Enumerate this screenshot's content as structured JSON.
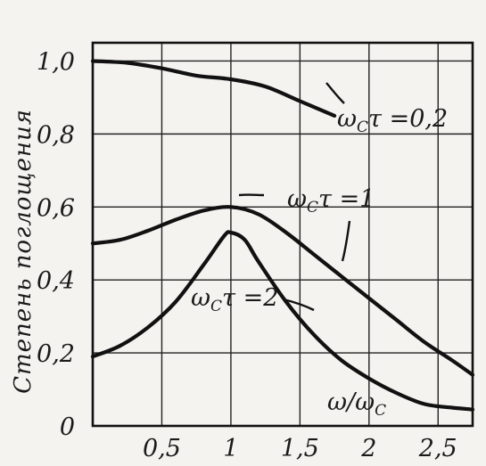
{
  "chart_data": {
    "type": "line",
    "ylabel": "Степень поглощения",
    "xlabel": "ω/ω_C",
    "xlim": [
      0,
      2.75
    ],
    "ylim": [
      0,
      1.05
    ],
    "x_ticks": [
      {
        "value": 0.5,
        "label": "0,5"
      },
      {
        "value": 1,
        "label": "1"
      },
      {
        "value": 1.5,
        "label": "1,5"
      },
      {
        "value": 2,
        "label": "2"
      },
      {
        "value": 2.5,
        "label": "2,5"
      }
    ],
    "y_ticks": [
      {
        "value": 0,
        "label": "0"
      },
      {
        "value": 0.2,
        "label": "0,2"
      },
      {
        "value": 0.4,
        "label": "0,4"
      },
      {
        "value": 0.6,
        "label": "0,6"
      },
      {
        "value": 0.8,
        "label": "0,8"
      },
      {
        "value": 1.0,
        "label": "1,0"
      }
    ],
    "grid": true,
    "series": [
      {
        "name": "ω_C τ = 0,2",
        "x": [
          0,
          0.25,
          0.5,
          0.75,
          1.0,
          1.25,
          1.5,
          1.75
        ],
        "y": [
          1.0,
          0.995,
          0.98,
          0.96,
          0.95,
          0.93,
          0.89,
          0.85
        ]
      },
      {
        "name": "ω_C τ = 1",
        "x": [
          0,
          0.2,
          0.4,
          0.6,
          0.8,
          1.0,
          1.2,
          1.4,
          1.6,
          1.8,
          2.0,
          2.2,
          2.4,
          2.6,
          2.75
        ],
        "y": [
          0.5,
          0.51,
          0.535,
          0.565,
          0.59,
          0.6,
          0.58,
          0.53,
          0.47,
          0.41,
          0.35,
          0.29,
          0.23,
          0.18,
          0.14
        ]
      },
      {
        "name": "ω_C τ = 2",
        "x": [
          0,
          0.2,
          0.4,
          0.6,
          0.8,
          0.95,
          1.0,
          1.1,
          1.2,
          1.4,
          1.6,
          1.8,
          2.0,
          2.2,
          2.4,
          2.6,
          2.75
        ],
        "y": [
          0.19,
          0.22,
          0.27,
          0.34,
          0.44,
          0.52,
          0.53,
          0.51,
          0.45,
          0.34,
          0.25,
          0.18,
          0.13,
          0.09,
          0.06,
          0.05,
          0.045
        ]
      }
    ],
    "curve_labels": [
      {
        "text": "ω",
        "sub": "C",
        "rest": "τ =0,2"
      },
      {
        "text": "ω",
        "sub": "C",
        "rest": "τ =1"
      },
      {
        "text": "ω",
        "sub": "C",
        "rest": "τ =2"
      }
    ],
    "xlabel_parts": {
      "main": "ω/ω",
      "sub": "C"
    }
  }
}
